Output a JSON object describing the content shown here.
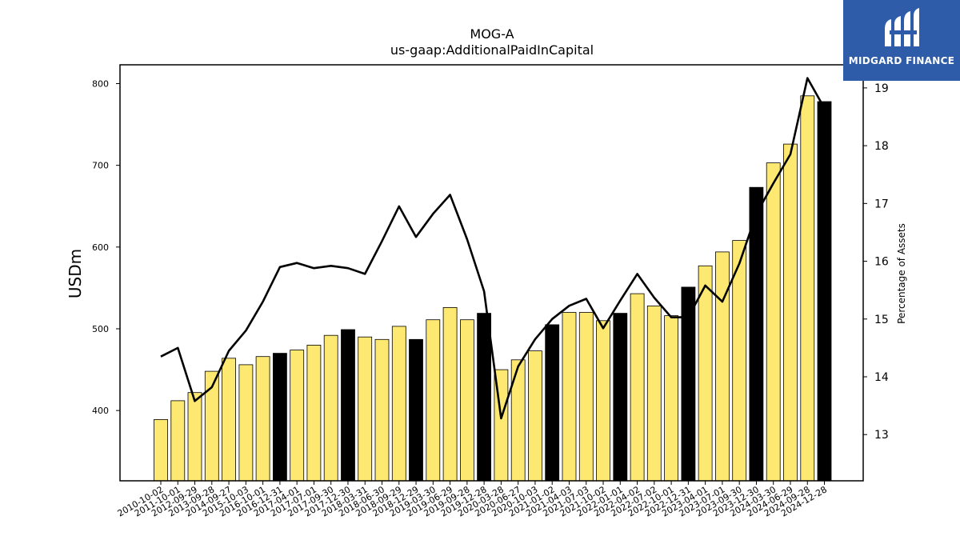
{
  "chart_data": {
    "type": "bar",
    "title": "MOG-A",
    "subtitle": "us-gaap:AdditionalPaidInCapital",
    "ylabel": "USDm",
    "y2label": "Percentage of Assets",
    "ylim": [
      314,
      823
    ],
    "y2lim": [
      12.2,
      19.4
    ],
    "yticks": [
      400,
      500,
      600,
      700,
      800
    ],
    "y2ticks": [
      13,
      14,
      15,
      16,
      17,
      18,
      19
    ],
    "grid": false,
    "categories": [
      "2010-10-02",
      "2011-10-01",
      "2012-09-29",
      "2013-09-28",
      "2014-09-27",
      "2015-10-03",
      "2016-10-01",
      "2016-12-31",
      "2017-04-01",
      "2017-07-01",
      "2017-09-30",
      "2017-12-30",
      "2018-03-31",
      "2018-06-30",
      "2018-09-29",
      "2018-12-29",
      "2019-03-30",
      "2019-06-29",
      "2019-09-28",
      "2019-12-28",
      "2020-03-28",
      "2020-06-27",
      "2020-10-03",
      "2021-01-02",
      "2021-04-03",
      "2021-07-03",
      "2021-10-02",
      "2022-01-01",
      "2022-04-02",
      "2022-07-02",
      "2022-10-01",
      "2022-12-31",
      "2023-04-01",
      "2023-07-01",
      "2023-09-30",
      "2023-12-30",
      "2024-03-30",
      "2024-06-29",
      "2024-09-28",
      "2024-12-28"
    ],
    "series": [
      {
        "type": "bar",
        "values": [
          389,
          412,
          422,
          448,
          464,
          456,
          466,
          470,
          474,
          480,
          492,
          499,
          490,
          487,
          503,
          487,
          511,
          526,
          511,
          519,
          450,
          462,
          473,
          505,
          520,
          520,
          510,
          519,
          543,
          528,
          516,
          551,
          577,
          594,
          608,
          673,
          703,
          726,
          785,
          778
        ],
        "highlight": [
          false,
          false,
          false,
          false,
          false,
          false,
          false,
          true,
          false,
          false,
          false,
          true,
          false,
          false,
          false,
          true,
          false,
          false,
          false,
          true,
          false,
          false,
          false,
          true,
          false,
          false,
          false,
          true,
          false,
          false,
          false,
          true,
          false,
          false,
          false,
          true,
          false,
          false,
          false,
          true
        ],
        "colors": {
          "regular": "#fde872",
          "highlight": "#000000"
        }
      },
      {
        "type": "line",
        "axis": "right",
        "color": "#000000",
        "values": [
          14.35,
          14.5,
          13.58,
          13.82,
          14.45,
          14.8,
          15.3,
          15.9,
          15.97,
          15.88,
          15.92,
          15.88,
          15.78,
          16.35,
          16.95,
          16.42,
          16.82,
          17.15,
          16.38,
          15.48,
          13.28,
          14.18,
          14.65,
          15.0,
          15.23,
          15.35,
          14.84,
          15.32,
          15.78,
          15.37,
          15.03,
          15.03,
          15.58,
          15.3,
          15.96,
          16.82,
          17.35,
          17.85,
          19.17,
          18.65
        ]
      }
    ]
  },
  "logo": {
    "text": "MIDGARD FINANCE",
    "icon": "midgard-logo-icon"
  }
}
